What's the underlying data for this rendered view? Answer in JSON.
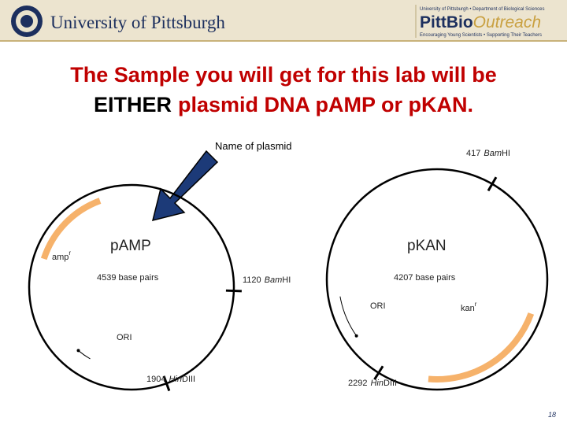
{
  "header": {
    "university": "University of Pittsburgh",
    "department_line": "University of Pittsburgh  •  Department of Biological Sciences",
    "brand_bold": "PittBio",
    "brand_italic": "Outreach",
    "tagline": "Encouraging Young Scientists  •  Supporting Their Teachers"
  },
  "slide": {
    "title_line1": "The Sample you will get for this lab will be",
    "title_either": "EITHER",
    "title_rest": "plasmid DNA pAMP or pKAN.",
    "callout": "Name of plasmid",
    "page_number": "18"
  },
  "plasmids": [
    {
      "name": "pAMP",
      "size": "4539 base pairs",
      "gene": "amp",
      "gene_sup": "r",
      "ori": "ORI",
      "sites": [
        {
          "position": "1120",
          "italic": "Bam",
          "rest": "HI"
        },
        {
          "position": "1904",
          "italic": "Hin",
          "rest": "DIII"
        }
      ]
    },
    {
      "name": "pKAN",
      "size": "4207 base pairs",
      "gene": "kan",
      "gene_sup": "r",
      "ori": "ORI",
      "sites": [
        {
          "position": "417",
          "italic": "Bam",
          "rest": "HI"
        },
        {
          "position": "2292",
          "italic": "Hin",
          "rest": "DIII"
        }
      ]
    }
  ]
}
